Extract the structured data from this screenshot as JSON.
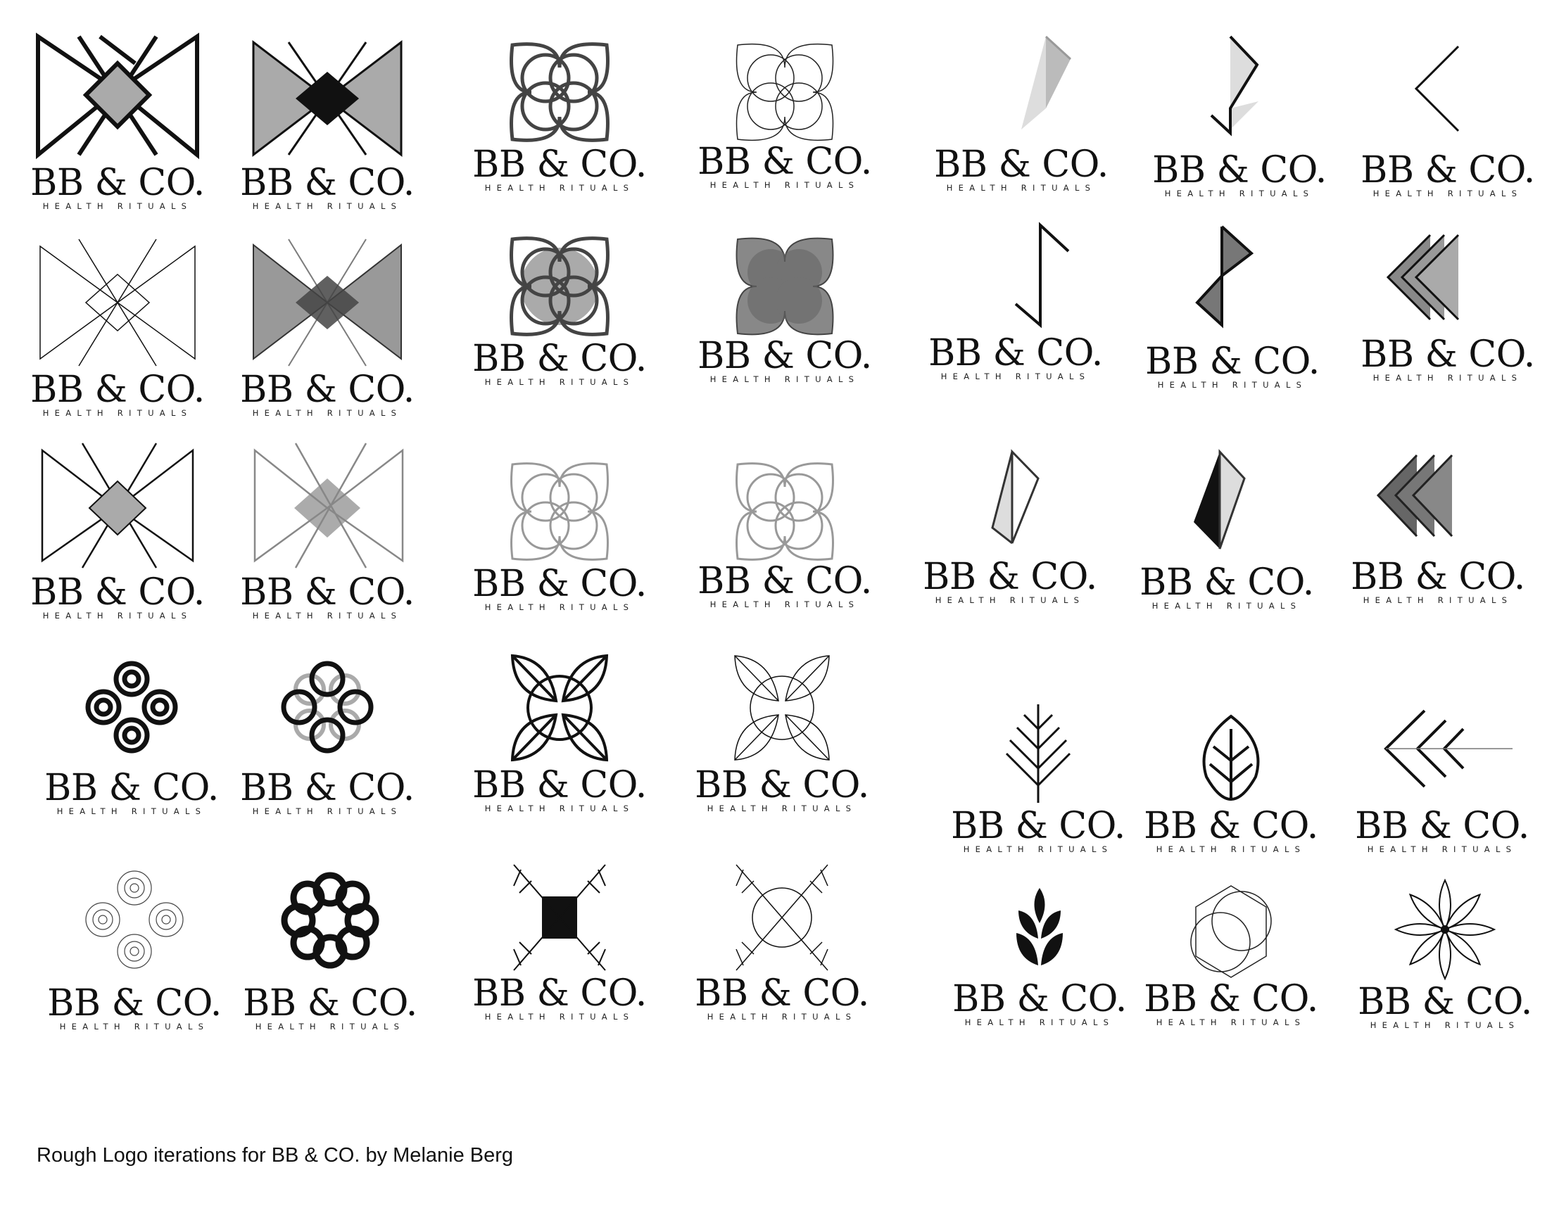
{
  "brand": {
    "name": "BB & CO.",
    "tagline": "HEALTH RITUALS"
  },
  "caption": "Rough Logo iterations for BB & CO. by Melanie Berg",
  "icons": {
    "bowtie": "bowtie-diamond-icon",
    "petal": "four-petal-circle-icon",
    "zigzag": "zigzag-triangle-icon",
    "chevron": "chevron-icon",
    "spiral": "spiral-icon",
    "leaf": "leaf-icon",
    "flower": "flower-icon",
    "hexagon": "hexagon-icon"
  },
  "colors": {
    "ink": "#111111",
    "mid_gray": "#777777",
    "light_gray": "#bbbbbb",
    "pale_gray": "#dddddd"
  }
}
